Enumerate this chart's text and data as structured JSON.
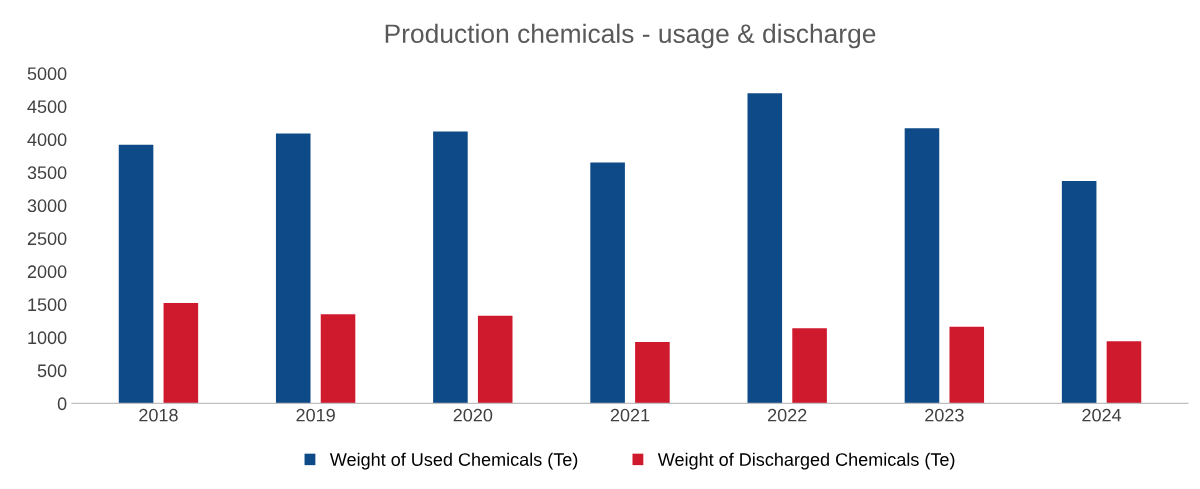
{
  "chart_data": {
    "type": "bar",
    "title": "Production chemicals - usage & discharge",
    "categories": [
      "2018",
      "2019",
      "2020",
      "2021",
      "2022",
      "2023",
      "2024"
    ],
    "series": [
      {
        "name": "Weight of Used Chemicals (Te)",
        "color": "#0e4a87",
        "values": [
          3920,
          4090,
          4120,
          3650,
          4700,
          4170,
          3370
        ]
      },
      {
        "name": "Weight of Discharged Chemicals (Te)",
        "color": "#cf1a2e",
        "values": [
          1520,
          1350,
          1330,
          930,
          1140,
          1160,
          940
        ]
      }
    ],
    "ylim": [
      0,
      5000
    ],
    "yticks": [
      0,
      500,
      1000,
      1500,
      2000,
      2500,
      3000,
      3500,
      4000,
      4500,
      5000
    ],
    "grid": false,
    "legend": "bottom"
  }
}
